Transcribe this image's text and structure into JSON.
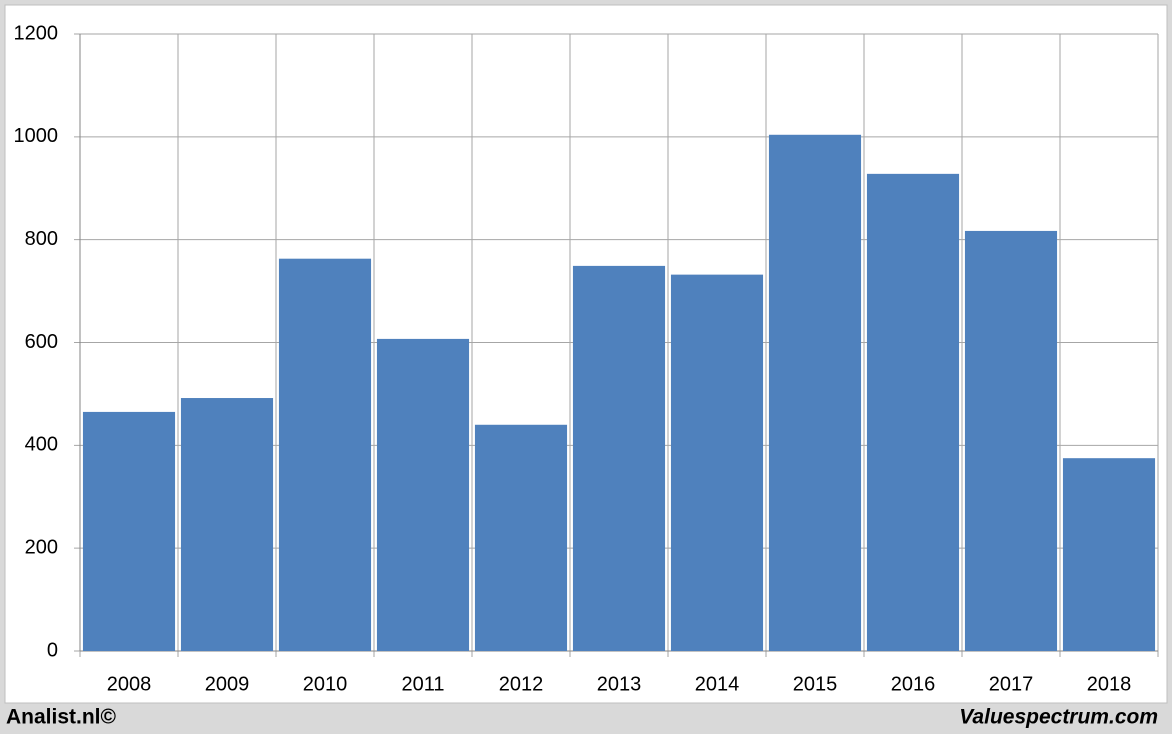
{
  "chart_data": {
    "type": "bar",
    "categories": [
      "2008",
      "2009",
      "2010",
      "2011",
      "2012",
      "2013",
      "2014",
      "2015",
      "2016",
      "2017",
      "2018"
    ],
    "values": [
      465,
      492,
      763,
      607,
      440,
      749,
      732,
      1004,
      928,
      817,
      375
    ],
    "color": "#4f81bd",
    "ylim": [
      0,
      1200
    ],
    "yticks": [
      0,
      200,
      400,
      600,
      800,
      1000,
      1200
    ],
    "grid": true
  },
  "footer": {
    "left": "Analist.nl©",
    "right": "Valuespectrum.com"
  }
}
